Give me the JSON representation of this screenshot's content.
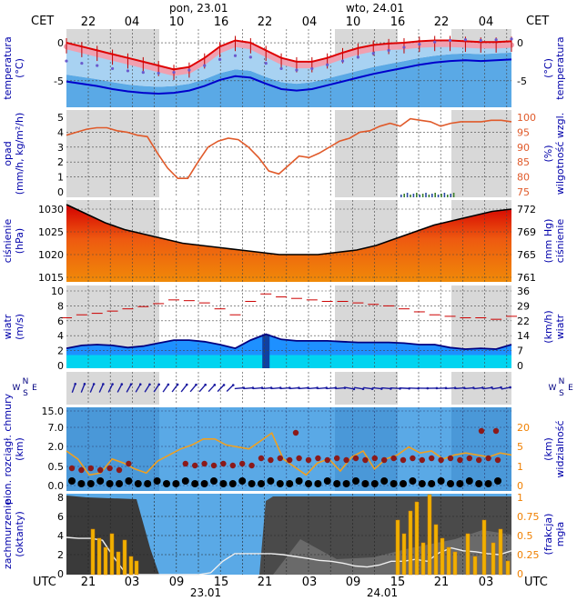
{
  "header": {
    "tz_top": "CET",
    "tz_bottom": "UTC",
    "top_hours": [
      "22",
      "04",
      "10",
      "16",
      "22",
      "04",
      "10",
      "16",
      "22",
      "04"
    ],
    "day_labels": [
      "pon, 23.01",
      "wto, 24.01"
    ],
    "bottom_hours": [
      "21",
      "03",
      "09",
      "15",
      "21",
      "03",
      "09",
      "15",
      "21",
      "03"
    ],
    "bottom_dates": [
      "23.01",
      "24.01"
    ]
  },
  "panels": [
    {
      "id": "temp",
      "left_label": [
        "temperatura",
        "(°C)"
      ],
      "right_label": [
        "(°C)",
        "temperatura"
      ],
      "left_ticks": [
        "0",
        "-5"
      ],
      "right_ticks": [
        "0",
        "-5"
      ]
    },
    {
      "id": "precip",
      "left_label": [
        "opad",
        "(mm/h, kg/m²/h)"
      ],
      "right_label": [
        "(%)",
        "wilgotność wzgl."
      ],
      "left_ticks": [
        "5",
        "4",
        "3",
        "2",
        "1",
        "0"
      ],
      "right_ticks": [
        "100",
        "95",
        "90",
        "85",
        "80",
        "75"
      ]
    },
    {
      "id": "pressure",
      "left_label": [
        "ciśnienie",
        "(hPa)"
      ],
      "right_label": [
        "(mm Hg)",
        "ciśnienie"
      ],
      "left_ticks": [
        "1030",
        "1025",
        "1020",
        "1015"
      ],
      "right_ticks": [
        "772",
        "769",
        "765",
        "761"
      ]
    },
    {
      "id": "wind",
      "left_label": [
        "wiatr",
        "(m/s)"
      ],
      "right_label": [
        "(km/h)",
        "wiatr"
      ],
      "left_ticks": [
        "10",
        "8",
        "6",
        "4",
        "2",
        "0"
      ],
      "right_ticks": [
        "36",
        "29",
        "22",
        "14",
        "7",
        "0"
      ]
    },
    {
      "id": "dir",
      "left_label": [
        "W",
        "N",
        "S",
        "E"
      ],
      "right_label": [
        "W",
        "N",
        "S",
        "E"
      ]
    },
    {
      "id": "cloud",
      "left_label": [
        "pion. rozciągł. chmury",
        "(km)"
      ],
      "right_label": [
        "(km)",
        "widzialność"
      ],
      "left_ticks": [
        "15.0",
        "7.0",
        "2.0",
        "0.5",
        "0.0"
      ],
      "right_ticks": [
        "20",
        "5",
        "1",
        "0"
      ]
    },
    {
      "id": "cover",
      "left_label": [
        "zachmurzenie",
        "(oktanty)"
      ],
      "right_label": [
        "(frakcja)",
        "mgła"
      ],
      "left_ticks": [
        "8",
        "6",
        "4",
        "2",
        "0"
      ],
      "right_ticks": [
        "1",
        "0.75",
        "0.5",
        "0.25",
        "0"
      ]
    }
  ],
  "chart_data": {
    "type": "line",
    "x_label": "hour",
    "temperature_c": [
      0,
      -0.5,
      -1,
      -1.5,
      -2,
      -2.5,
      -3,
      -3.5,
      -3.2,
      -2,
      -0.5,
      0.3,
      0,
      -1,
      -2,
      -2.5,
      -2.5,
      -2,
      -1.3,
      -0.7,
      -0.3,
      -0.1,
      0,
      0.2,
      0.3,
      0.3,
      0.2,
      0.1,
      0.1,
      0.2
    ],
    "dewpoint_c": [
      -3,
      -3.3,
      -3.6,
      -4,
      -4.3,
      -4.5,
      -4.6,
      -4.5,
      -4.2,
      -3.6,
      -2.8,
      -2.3,
      -2.5,
      -3.3,
      -4,
      -4.2,
      -4,
      -3.5,
      -3,
      -2.5,
      -2,
      -1.6,
      -1.2,
      -0.8,
      -0.5,
      -0.3,
      -0.2,
      -0.3,
      -0.2,
      -0.1
    ],
    "relative_humidity_pct": [
      94,
      95,
      96,
      96.5,
      96.5,
      95.5,
      95,
      94,
      93.5,
      88,
      83,
      79.5,
      79.5,
      85,
      90,
      92,
      93,
      92.5,
      90,
      86.5,
      82,
      81,
      84,
      87,
      86.5,
      88,
      90,
      92,
      93,
      95,
      95.5,
      97,
      98,
      97,
      99.5,
      99,
      98.5,
      97,
      98,
      98.5,
      98.5,
      98.5,
      99,
      99,
      98.5
    ],
    "pressure_hpa": [
      1031,
      1029,
      1027,
      1025.5,
      1024.5,
      1023.5,
      1022.5,
      1022,
      1021.5,
      1021,
      1020.5,
      1020,
      1020,
      1020,
      1020.5,
      1021,
      1022,
      1023.5,
      1025,
      1026.5,
      1027.5,
      1028.5,
      1029.5,
      1030
    ],
    "wind_ms": [
      2.3,
      2.7,
      2.8,
      2.7,
      2.4,
      2.6,
      3,
      3.4,
      3.4,
      3.2,
      2.8,
      2.3,
      3.4,
      4.2,
      3.5,
      3.3,
      3.3,
      3.3,
      3.2,
      3.1,
      3.1,
      3.1,
      3,
      2.8,
      2.8,
      2.4,
      2.2,
      2.3,
      2.2,
      2.8
    ],
    "cloud_cover_oktas": [
      3.9,
      3.8,
      3.8,
      3.6,
      1.7,
      0,
      0,
      0,
      0,
      0,
      0,
      0,
      0.2,
      1.4,
      2.2,
      2.2,
      2.2,
      2.2,
      2.1,
      1.9,
      1.7,
      1.5,
      1.4,
      1.2,
      0.9,
      0.8,
      1,
      1.4,
      1.4,
      1.6,
      1.4,
      2.3,
      2.8,
      2.5,
      2.4,
      2.2,
      2.1,
      2.5
    ]
  }
}
